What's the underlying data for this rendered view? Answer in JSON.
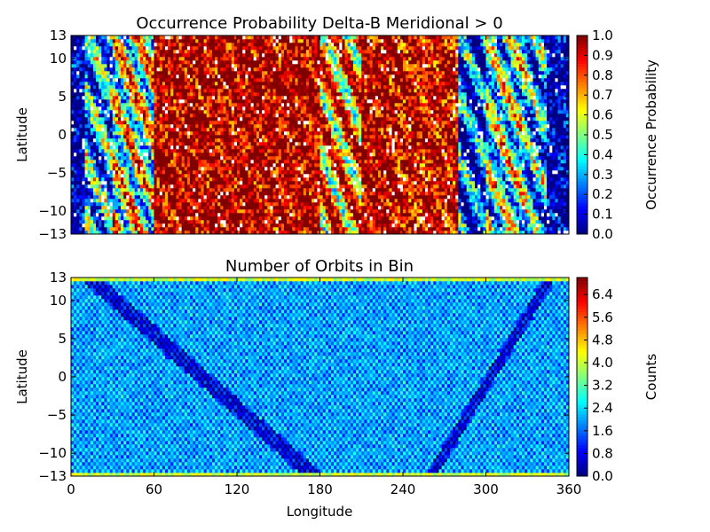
{
  "chart_data": [
    {
      "type": "heatmap",
      "title": "Occurrence Probability Delta-B Meridional > 0",
      "xlabel": "",
      "ylabel": "Latitude",
      "xlim": [
        0,
        360
      ],
      "ylim": [
        -13,
        13
      ],
      "yticks": [
        -13,
        -10,
        -5,
        0,
        5,
        10,
        13
      ],
      "xticks_labeled": false,
      "colormap": "jet",
      "missing_color": "#ffffff",
      "colorbar": {
        "label": "Occurrence Probability",
        "range": [
          0.0,
          1.0
        ],
        "ticks": [
          "0.0",
          "0.1",
          "0.2",
          "0.3",
          "0.4",
          "0.5",
          "0.6",
          "0.7",
          "0.8",
          "0.9",
          "1.0"
        ]
      },
      "grid": {
        "nx": 180,
        "ny": 56,
        "regions": [
          {
            "lon": [
              0,
              10
            ],
            "value": 0.02
          },
          {
            "lon": [
              10,
              30
            ],
            "value": 0.3
          },
          {
            "lon": [
              30,
              60
            ],
            "value": 0.55
          },
          {
            "lon": [
              60,
              180
            ],
            "value": 0.97
          },
          {
            "lon": [
              180,
              210
            ],
            "value": 0.75
          },
          {
            "lon": [
              210,
              235
            ],
            "value": 0.96
          },
          {
            "lon": [
              235,
              280
            ],
            "value": 0.92
          },
          {
            "lon": [
              280,
              300
            ],
            "value": 0.18
          },
          {
            "lon": [
              300,
              330
            ],
            "value": 0.45
          },
          {
            "lon": [
              330,
              345
            ],
            "value": 0.3
          },
          {
            "lon": [
              345,
              360
            ],
            "value": 0.03
          }
        ],
        "missing_fraction": 0.04
      }
    },
    {
      "type": "heatmap",
      "title": "Number of Orbits in Bin",
      "xlabel": "Longitude",
      "ylabel": "Latitude",
      "xlim": [
        0,
        360
      ],
      "ylim": [
        -13,
        13
      ],
      "xticks": [
        0,
        60,
        120,
        180,
        240,
        300,
        360
      ],
      "yticks": [
        -13,
        -10,
        -5,
        0,
        5,
        10,
        13
      ],
      "colormap": "jet",
      "colorbar": {
        "label": "Counts",
        "range": [
          0.0,
          7.0
        ],
        "ticks": [
          "0.0",
          "0.8",
          "1.6",
          "2.4",
          "3.2",
          "4.0",
          "4.8",
          "5.6",
          "6.4"
        ]
      },
      "grid": {
        "nx": 180,
        "ny": 56,
        "typical_value": 2.0,
        "edge_value": 4.0
      }
    }
  ]
}
